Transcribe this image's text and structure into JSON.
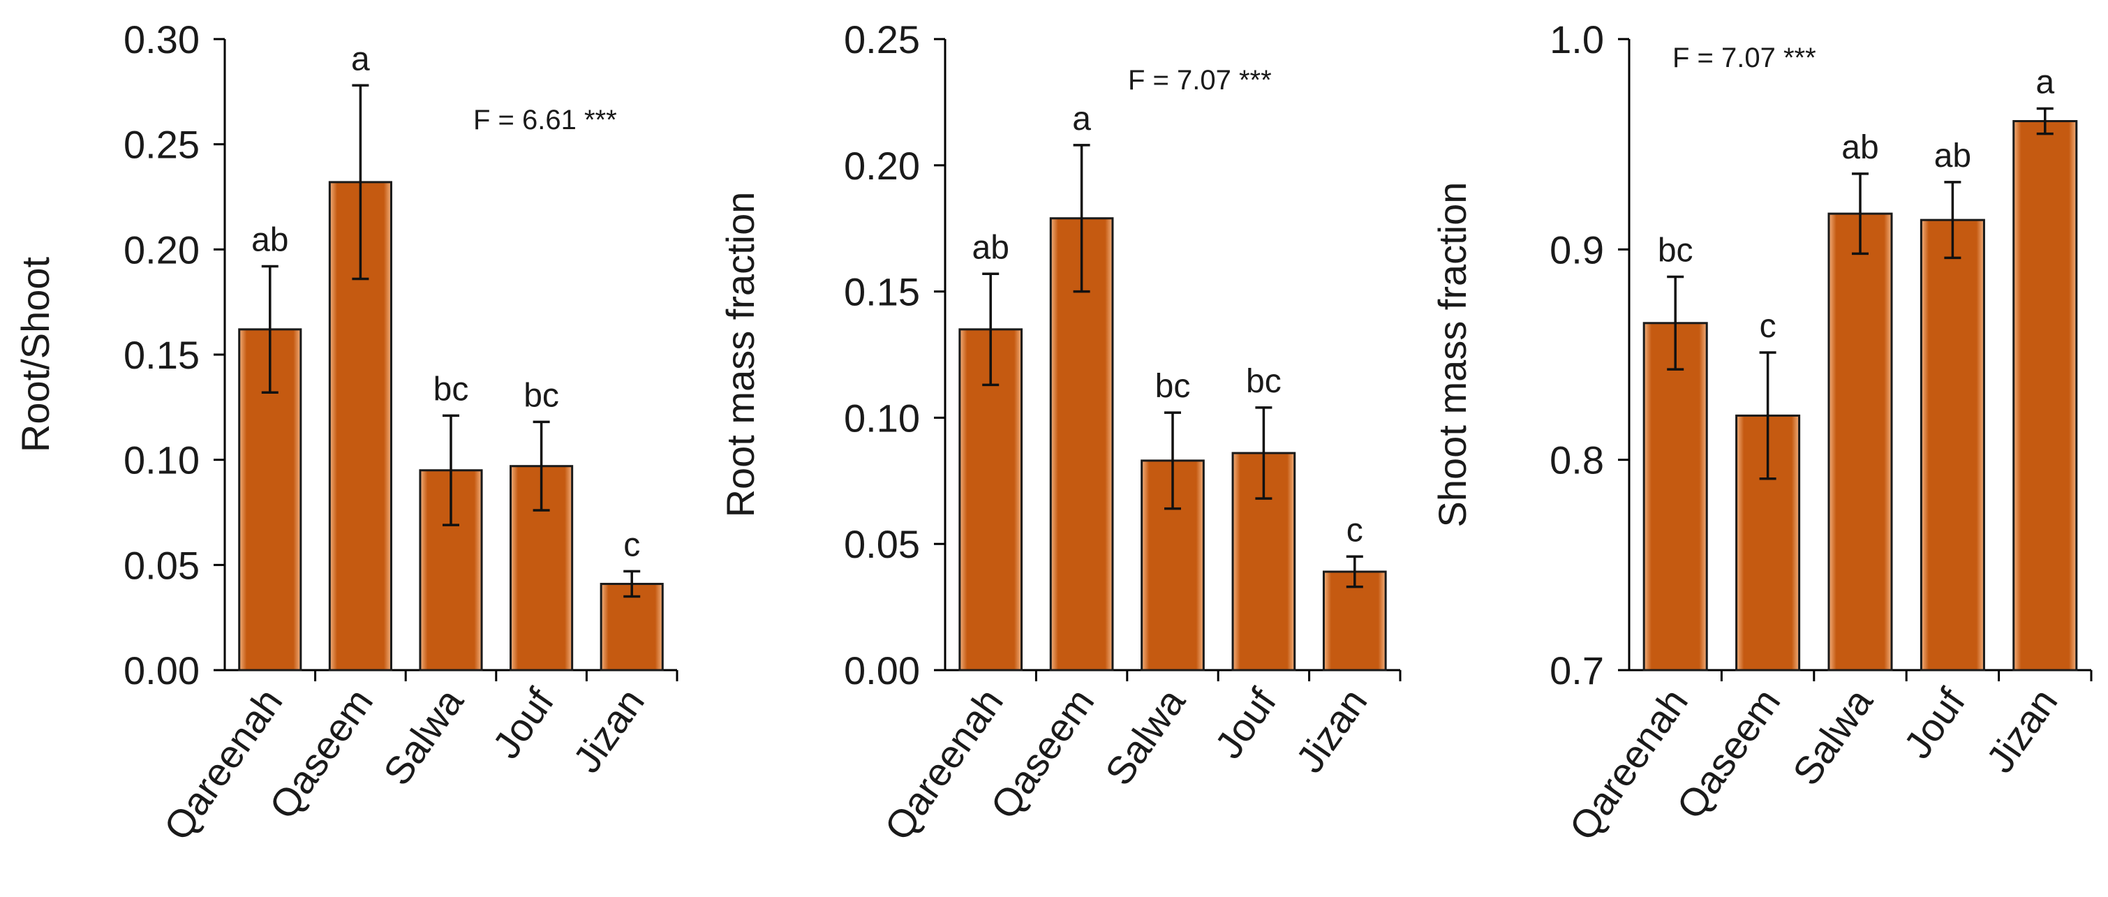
{
  "chart_data": [
    {
      "type": "bar",
      "ylabel": "Root/Shoot",
      "xlabel": "",
      "title": "",
      "categories": [
        "Qareenah",
        "Qaseem",
        "Salwa",
        "Jouf",
        "Jizan"
      ],
      "values": [
        0.162,
        0.232,
        0.095,
        0.097,
        0.041
      ],
      "error": [
        0.03,
        0.046,
        0.026,
        0.021,
        0.006
      ],
      "letters": [
        "ab",
        "a",
        "bc",
        "bc",
        "c"
      ],
      "ylim": [
        0,
        0.3
      ],
      "yticks": [
        0.0,
        0.05,
        0.1,
        0.15,
        0.2,
        0.25,
        0.3
      ],
      "ytick_labels": [
        "0.00",
        "0.05",
        "0.10",
        "0.15",
        "0.20",
        "0.25",
        "0.30"
      ],
      "annotation": "F = 6.61 ***",
      "bar_color": "#c55a11"
    },
    {
      "type": "bar",
      "ylabel": "Root mass fraction",
      "xlabel": "",
      "title": "",
      "categories": [
        "Qareenah",
        "Qaseem",
        "Salwa",
        "Jouf",
        "Jizan"
      ],
      "values": [
        0.135,
        0.179,
        0.083,
        0.086,
        0.039
      ],
      "error": [
        0.022,
        0.029,
        0.019,
        0.018,
        0.006
      ],
      "letters": [
        "ab",
        "a",
        "bc",
        "bc",
        "c"
      ],
      "ylim": [
        0,
        0.25
      ],
      "yticks": [
        0.0,
        0.05,
        0.1,
        0.15,
        0.2,
        0.25
      ],
      "ytick_labels": [
        "0.00",
        "0.05",
        "0.10",
        "0.15",
        "0.20",
        "0.25"
      ],
      "annotation": "F = 7.07 ***",
      "bar_color": "#c55a11"
    },
    {
      "type": "bar",
      "ylabel": "Shoot mass fraction",
      "xlabel": "",
      "title": "",
      "categories": [
        "Qareenah",
        "Qaseem",
        "Salwa",
        "Jouf",
        "Jizan"
      ],
      "values": [
        0.865,
        0.821,
        0.917,
        0.914,
        0.961
      ],
      "error": [
        0.022,
        0.03,
        0.019,
        0.018,
        0.006
      ],
      "letters": [
        "bc",
        "c",
        "ab",
        "ab",
        "a"
      ],
      "ylim": [
        0.7,
        1.0
      ],
      "yticks": [
        0.7,
        0.8,
        0.9,
        1.0
      ],
      "ytick_labels": [
        "0.7",
        "0.8",
        "0.9",
        "1.0"
      ],
      "annotation": "F = 7.07 ***",
      "bar_color": "#c55a11"
    }
  ]
}
